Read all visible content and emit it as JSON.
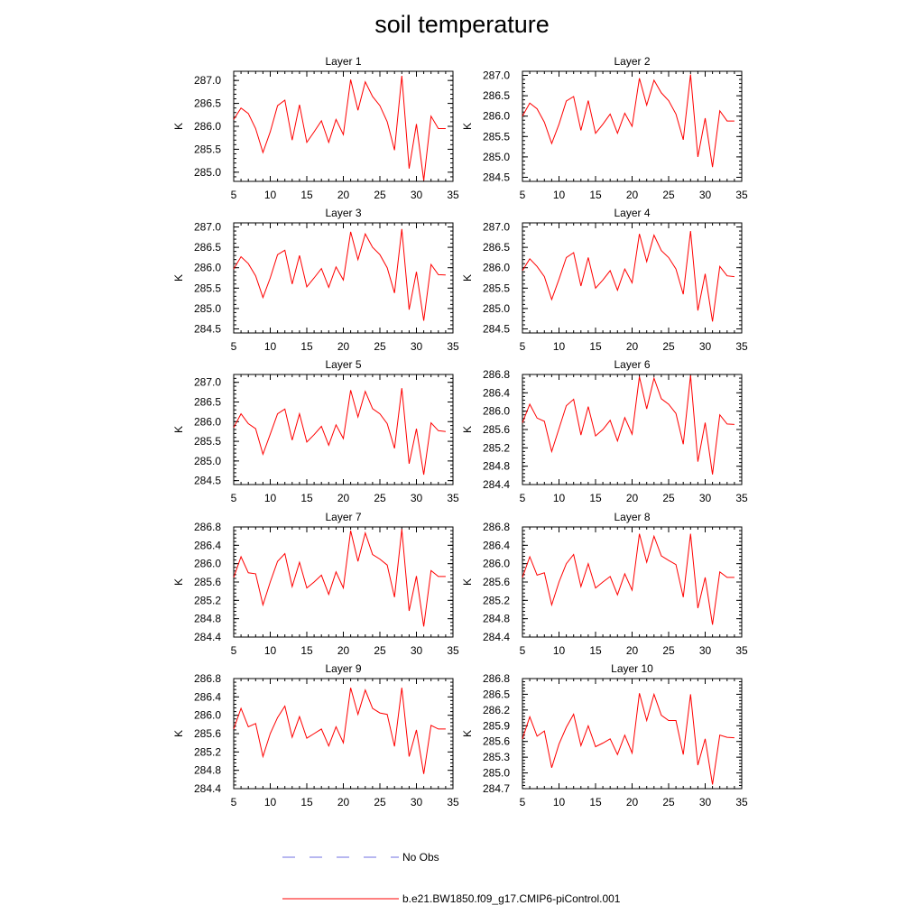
{
  "title": "soil temperature",
  "legend": [
    {
      "label": "No Obs",
      "color": "#6f6fe0",
      "style": "dashed"
    },
    {
      "label": "b.e21.BW1850.f09_g17.CMIP6-piControl.001",
      "color": "#ff0000",
      "style": "solid"
    }
  ],
  "chart_data": [
    {
      "type": "line",
      "title": "Layer 1",
      "ylabel": "K",
      "xlim": [
        5,
        35
      ],
      "ylim": [
        284.8,
        287.2
      ],
      "yticks": [
        "287.0",
        "286.5",
        "286.0",
        "285.5",
        "285.0"
      ],
      "yticks_values": [
        287.0,
        286.5,
        286.0,
        285.5,
        285.0
      ],
      "xticks": [
        5,
        10,
        15,
        20,
        25,
        30,
        35
      ],
      "series": [
        {
          "color": "#ff0000",
          "x": [
            5,
            6,
            7,
            8,
            9,
            10,
            11,
            12,
            13,
            14,
            15,
            16,
            17,
            18,
            19,
            20,
            21,
            22,
            23,
            24,
            25,
            26,
            27,
            28,
            29,
            30,
            31,
            32,
            33,
            34
          ],
          "y": [
            286.15,
            286.4,
            286.28,
            285.95,
            285.43,
            285.88,
            286.45,
            286.57,
            285.7,
            286.47,
            285.65,
            285.88,
            286.12,
            285.65,
            286.15,
            285.82,
            287.02,
            286.35,
            286.97,
            286.65,
            286.45,
            286.1,
            285.48,
            287.1,
            285.08,
            286.05,
            284.82,
            286.22,
            285.95,
            285.95
          ]
        }
      ]
    },
    {
      "type": "line",
      "title": "Layer 2",
      "ylabel": "K",
      "xlim": [
        5,
        35
      ],
      "ylim": [
        284.4,
        287.1
      ],
      "yticks": [
        "287.0",
        "286.5",
        "286.0",
        "285.5",
        "285.0",
        "284.5"
      ],
      "yticks_values": [
        287.0,
        286.5,
        286.0,
        285.5,
        285.0,
        284.5
      ],
      "xticks": [
        5,
        10,
        15,
        20,
        25,
        30,
        35
      ],
      "series": [
        {
          "color": "#ff0000",
          "x": [
            5,
            6,
            7,
            8,
            9,
            10,
            11,
            12,
            13,
            14,
            15,
            16,
            17,
            18,
            19,
            20,
            21,
            22,
            23,
            24,
            25,
            26,
            27,
            28,
            29,
            30,
            31,
            32,
            33,
            34
          ],
          "y": [
            286.0,
            286.32,
            286.18,
            285.85,
            285.33,
            285.8,
            286.37,
            286.48,
            285.65,
            286.38,
            285.58,
            285.8,
            286.05,
            285.58,
            286.07,
            285.75,
            286.93,
            286.27,
            286.88,
            286.57,
            286.38,
            286.05,
            285.42,
            287.02,
            285.0,
            285.95,
            284.75,
            286.13,
            285.88,
            285.88
          ]
        }
      ]
    },
    {
      "type": "line",
      "title": "Layer 3",
      "ylabel": "K",
      "xlim": [
        5,
        35
      ],
      "ylim": [
        284.4,
        287.1
      ],
      "yticks": [
        "287.0",
        "286.5",
        "286.0",
        "285.5",
        "285.0",
        "284.5"
      ],
      "yticks_values": [
        287.0,
        286.5,
        286.0,
        285.5,
        285.0,
        284.5
      ],
      "xticks": [
        5,
        10,
        15,
        20,
        25,
        30,
        35
      ],
      "series": [
        {
          "color": "#ff0000",
          "x": [
            5,
            6,
            7,
            8,
            9,
            10,
            11,
            12,
            13,
            14,
            15,
            16,
            17,
            18,
            19,
            20,
            21,
            22,
            23,
            24,
            25,
            26,
            27,
            28,
            29,
            30,
            31,
            32,
            33,
            34
          ],
          "y": [
            285.97,
            286.27,
            286.1,
            285.8,
            285.27,
            285.75,
            286.32,
            286.43,
            285.6,
            286.3,
            285.53,
            285.75,
            285.98,
            285.52,
            286.02,
            285.7,
            286.88,
            286.2,
            286.83,
            286.5,
            286.32,
            286.0,
            285.38,
            286.95,
            284.97,
            285.9,
            284.7,
            286.08,
            285.83,
            285.82
          ]
        }
      ]
    },
    {
      "type": "line",
      "title": "Layer 4",
      "ylabel": "K",
      "xlim": [
        5,
        35
      ],
      "ylim": [
        284.4,
        287.1
      ],
      "yticks": [
        "287.0",
        "286.5",
        "286.0",
        "285.5",
        "285.0",
        "284.5"
      ],
      "yticks_values": [
        287.0,
        286.5,
        286.0,
        285.5,
        285.0,
        284.5
      ],
      "xticks": [
        5,
        10,
        15,
        20,
        25,
        30,
        35
      ],
      "series": [
        {
          "color": "#ff0000",
          "x": [
            5,
            6,
            7,
            8,
            9,
            10,
            11,
            12,
            13,
            14,
            15,
            16,
            17,
            18,
            19,
            20,
            21,
            22,
            23,
            24,
            25,
            26,
            27,
            28,
            29,
            30,
            31,
            32,
            33,
            34
          ],
          "y": [
            285.93,
            286.22,
            286.03,
            285.78,
            285.22,
            285.72,
            286.25,
            286.37,
            285.55,
            286.25,
            285.5,
            285.7,
            285.93,
            285.45,
            285.97,
            285.63,
            286.83,
            286.15,
            286.8,
            286.42,
            286.25,
            285.97,
            285.35,
            286.9,
            284.95,
            285.85,
            284.68,
            286.03,
            285.8,
            285.78
          ]
        }
      ]
    },
    {
      "type": "line",
      "title": "Layer 5",
      "ylabel": "K",
      "xlim": [
        5,
        35
      ],
      "ylim": [
        284.4,
        287.2
      ],
      "yticks": [
        "287.0",
        "286.5",
        "286.0",
        "285.5",
        "285.0",
        "284.5"
      ],
      "yticks_values": [
        287.0,
        286.5,
        286.0,
        285.5,
        285.0,
        284.5
      ],
      "xticks": [
        5,
        10,
        15,
        20,
        25,
        30,
        35
      ],
      "series": [
        {
          "color": "#ff0000",
          "x": [
            5,
            6,
            7,
            8,
            9,
            10,
            11,
            12,
            13,
            14,
            15,
            16,
            17,
            18,
            19,
            20,
            21,
            22,
            23,
            24,
            25,
            26,
            27,
            28,
            29,
            30,
            31,
            32,
            33,
            34
          ],
          "y": [
            285.85,
            286.2,
            285.95,
            285.82,
            285.17,
            285.68,
            286.2,
            286.32,
            285.53,
            286.2,
            285.48,
            285.67,
            285.88,
            285.4,
            285.92,
            285.57,
            286.8,
            286.12,
            286.77,
            286.33,
            286.2,
            285.95,
            285.32,
            286.85,
            284.93,
            285.82,
            284.65,
            285.97,
            285.77,
            285.75
          ]
        }
      ]
    },
    {
      "type": "line",
      "title": "Layer 6",
      "ylabel": "K",
      "xlim": [
        5,
        35
      ],
      "ylim": [
        284.4,
        286.8
      ],
      "yticks": [
        "286.8",
        "286.4",
        "286.0",
        "285.6",
        "285.2",
        "284.8",
        "284.4"
      ],
      "yticks_values": [
        286.8,
        286.4,
        286.0,
        285.6,
        285.2,
        284.8,
        284.4
      ],
      "xticks": [
        5,
        10,
        15,
        20,
        25,
        30,
        35
      ],
      "series": [
        {
          "color": "#ff0000",
          "x": [
            5,
            6,
            7,
            8,
            9,
            10,
            11,
            12,
            13,
            14,
            15,
            16,
            17,
            18,
            19,
            20,
            21,
            22,
            23,
            24,
            25,
            26,
            27,
            28,
            29,
            30,
            31,
            32,
            33,
            34
          ],
          "y": [
            285.75,
            286.15,
            285.85,
            285.78,
            285.12,
            285.62,
            286.12,
            286.26,
            285.48,
            286.1,
            285.46,
            285.6,
            285.8,
            285.35,
            285.86,
            285.5,
            286.75,
            286.05,
            286.72,
            286.27,
            286.15,
            285.95,
            285.28,
            286.78,
            284.9,
            285.75,
            284.62,
            285.92,
            285.72,
            285.71
          ]
        }
      ]
    },
    {
      "type": "line",
      "title": "Layer 7",
      "ylabel": "K",
      "xlim": [
        5,
        35
      ],
      "ylim": [
        284.4,
        286.8
      ],
      "yticks": [
        "286.8",
        "286.4",
        "286.0",
        "285.6",
        "285.2",
        "284.8",
        "284.4"
      ],
      "yticks_values": [
        286.8,
        286.4,
        286.0,
        285.6,
        285.2,
        284.8,
        284.4
      ],
      "xticks": [
        5,
        10,
        15,
        20,
        25,
        30,
        35
      ],
      "series": [
        {
          "color": "#ff0000",
          "x": [
            5,
            6,
            7,
            8,
            9,
            10,
            11,
            12,
            13,
            14,
            15,
            16,
            17,
            18,
            19,
            20,
            21,
            22,
            23,
            24,
            25,
            26,
            27,
            28,
            29,
            30,
            31,
            32,
            33,
            34
          ],
          "y": [
            285.7,
            286.15,
            285.8,
            285.78,
            285.1,
            285.6,
            286.05,
            286.22,
            285.5,
            286.03,
            285.47,
            285.6,
            285.75,
            285.33,
            285.82,
            285.47,
            286.72,
            286.05,
            286.67,
            286.2,
            286.1,
            285.97,
            285.27,
            286.75,
            284.97,
            285.73,
            284.63,
            285.85,
            285.72,
            285.72
          ]
        }
      ]
    },
    {
      "type": "line",
      "title": "Layer 8",
      "ylabel": "K",
      "xlim": [
        5,
        35
      ],
      "ylim": [
        284.4,
        286.8
      ],
      "yticks": [
        "286.8",
        "286.4",
        "286.0",
        "285.6",
        "285.2",
        "284.8",
        "284.4"
      ],
      "yticks_values": [
        286.8,
        286.4,
        286.0,
        285.6,
        285.2,
        284.8,
        284.4
      ],
      "xticks": [
        5,
        10,
        15,
        20,
        25,
        30,
        35
      ],
      "series": [
        {
          "color": "#ff0000",
          "x": [
            5,
            6,
            7,
            8,
            9,
            10,
            11,
            12,
            13,
            14,
            15,
            16,
            17,
            18,
            19,
            20,
            21,
            22,
            23,
            24,
            25,
            26,
            27,
            28,
            29,
            30,
            31,
            32,
            33,
            34
          ],
          "y": [
            285.7,
            286.15,
            285.75,
            285.8,
            285.1,
            285.6,
            286.0,
            286.2,
            285.5,
            286.0,
            285.47,
            285.6,
            285.72,
            285.32,
            285.78,
            285.42,
            286.65,
            286.03,
            286.6,
            286.17,
            286.07,
            285.98,
            285.27,
            286.65,
            285.03,
            285.7,
            284.67,
            285.82,
            285.7,
            285.7
          ]
        }
      ]
    },
    {
      "type": "line",
      "title": "Layer 9",
      "ylabel": "K",
      "xlim": [
        5,
        35
      ],
      "ylim": [
        284.4,
        286.8
      ],
      "yticks": [
        "286.8",
        "286.4",
        "286.0",
        "285.6",
        "285.2",
        "284.8",
        "284.4"
      ],
      "yticks_values": [
        286.8,
        286.4,
        286.0,
        285.6,
        285.2,
        284.8,
        284.4
      ],
      "xticks": [
        5,
        10,
        15,
        20,
        25,
        30,
        35
      ],
      "series": [
        {
          "color": "#ff0000",
          "x": [
            5,
            6,
            7,
            8,
            9,
            10,
            11,
            12,
            13,
            14,
            15,
            16,
            17,
            18,
            19,
            20,
            21,
            22,
            23,
            24,
            25,
            26,
            27,
            28,
            29,
            30,
            31,
            32,
            33,
            34
          ],
          "y": [
            285.7,
            286.15,
            285.75,
            285.82,
            285.1,
            285.6,
            285.95,
            286.2,
            285.52,
            285.97,
            285.5,
            285.6,
            285.7,
            285.33,
            285.75,
            285.4,
            286.6,
            286.02,
            286.55,
            286.15,
            286.05,
            286.02,
            285.32,
            286.6,
            285.1,
            285.68,
            284.72,
            285.78,
            285.7,
            285.7
          ]
        }
      ]
    },
    {
      "type": "line",
      "title": "Layer 10",
      "ylabel": "K",
      "xlim": [
        5,
        35
      ],
      "ylim": [
        284.7,
        286.8
      ],
      "yticks": [
        "286.8",
        "286.5",
        "286.2",
        "285.9",
        "285.6",
        "285.3",
        "285.0",
        "284.7"
      ],
      "yticks_values": [
        286.8,
        286.5,
        286.2,
        285.9,
        285.6,
        285.3,
        285.0,
        284.7
      ],
      "xticks": [
        5,
        10,
        15,
        20,
        25,
        30,
        35
      ],
      "series": [
        {
          "color": "#ff0000",
          "x": [
            5,
            6,
            7,
            8,
            9,
            10,
            11,
            12,
            13,
            14,
            15,
            16,
            17,
            18,
            19,
            20,
            21,
            22,
            23,
            24,
            25,
            26,
            27,
            28,
            29,
            30,
            31,
            32,
            33,
            34
          ],
          "y": [
            285.65,
            286.07,
            285.7,
            285.8,
            285.1,
            285.55,
            285.87,
            286.12,
            285.52,
            285.9,
            285.5,
            285.57,
            285.65,
            285.35,
            285.72,
            285.38,
            286.52,
            286.0,
            286.5,
            286.1,
            286.0,
            286.0,
            285.35,
            286.5,
            285.15,
            285.65,
            284.78,
            285.72,
            285.68,
            285.67
          ]
        }
      ]
    }
  ]
}
